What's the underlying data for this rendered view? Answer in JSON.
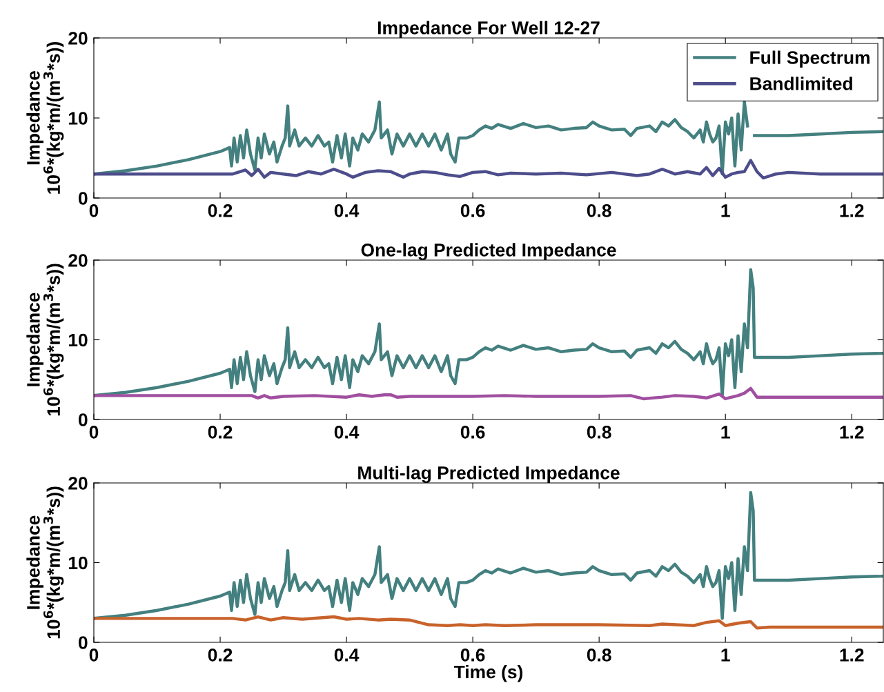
{
  "chart_data": [
    {
      "type": "line",
      "title": "Impedance For Well 12-27",
      "ylabel": "Impedance\n10$^{6}$*(kg*m/(m$^{3}$*s))",
      "xlim": [
        0,
        1.25
      ],
      "ylim": [
        0,
        20
      ],
      "xticks": [
        0,
        0.2,
        0.4,
        0.6,
        0.8,
        1,
        1.2
      ],
      "yticks": [
        0,
        10,
        20
      ],
      "grid": false,
      "legend": "top right",
      "line_style": "solid",
      "marker": "none",
      "series": [
        {
          "name": "Full Spectrum",
          "color": "#43807f",
          "x": [
            0,
            0.05,
            0.1,
            0.15,
            0.2,
            0.215,
            0.218,
            0.222,
            0.227,
            0.232,
            0.237,
            0.242,
            0.248,
            0.255,
            0.26,
            0.265,
            0.27,
            0.278,
            0.285,
            0.29,
            0.298,
            0.303,
            0.307,
            0.31,
            0.318,
            0.325,
            0.335,
            0.345,
            0.355,
            0.365,
            0.372,
            0.378,
            0.385,
            0.392,
            0.398,
            0.405,
            0.41,
            0.418,
            0.425,
            0.435,
            0.445,
            0.452,
            0.455,
            0.465,
            0.472,
            0.48,
            0.49,
            0.5,
            0.51,
            0.52,
            0.53,
            0.54,
            0.55,
            0.56,
            0.565,
            0.572,
            0.578,
            0.59,
            0.6,
            0.61,
            0.62,
            0.63,
            0.64,
            0.66,
            0.68,
            0.7,
            0.72,
            0.74,
            0.76,
            0.78,
            0.79,
            0.8,
            0.82,
            0.84,
            0.85,
            0.86,
            0.88,
            0.89,
            0.9,
            0.91,
            0.92,
            0.93,
            0.94,
            0.95,
            0.96,
            0.965,
            0.97,
            0.975,
            0.98,
            0.985,
            0.99,
            0.995,
            1.0,
            1.005,
            1.01,
            1.015,
            1.02,
            1.025,
            1.03,
            1.035,
            1.04,
            1.044,
            1.046,
            1.1,
            1.15,
            1.2,
            1.25
          ],
          "values": [
            3.0,
            3.4,
            4.0,
            4.8,
            5.8,
            6.3,
            4.0,
            7.5,
            4.5,
            7.8,
            5.0,
            8.5,
            5.5,
            3.5,
            7.5,
            5.0,
            8.0,
            5.5,
            7.0,
            4.5,
            6.5,
            7.5,
            11.5,
            6.5,
            8.5,
            6.5,
            7.5,
            6.5,
            7.8,
            6.5,
            7.0,
            4.5,
            7.8,
            5.0,
            8.0,
            4.0,
            7.5,
            6.0,
            8.0,
            7.0,
            8.5,
            12.0,
            7.5,
            8.5,
            5.5,
            8.0,
            6.5,
            8.0,
            6.5,
            8.0,
            6.5,
            8.0,
            6.0,
            8.0,
            5.5,
            4.5,
            7.5,
            7.5,
            7.8,
            8.5,
            9.0,
            8.7,
            9.2,
            8.7,
            9.3,
            8.8,
            9.0,
            8.5,
            8.7,
            8.8,
            9.5,
            9.0,
            8.5,
            8.6,
            7.8,
            8.7,
            9.0,
            8.3,
            9.5,
            9.0,
            9.8,
            8.8,
            8.3,
            7.5,
            8.5,
            7.0,
            9.5,
            8.0,
            7.0,
            7.5,
            9.0,
            3.0,
            9.5,
            8.0,
            10.0,
            4.0,
            10.5,
            6.0,
            12.0,
            9.0,
            null,
            null,
            7.8,
            7.8,
            8.0,
            8.2,
            8.3
          ]
        },
        {
          "name": "Bandlimited",
          "color": "#4d4d8c",
          "x": [
            0,
            0.2,
            0.22,
            0.24,
            0.25,
            0.26,
            0.27,
            0.28,
            0.3,
            0.32,
            0.34,
            0.36,
            0.38,
            0.4,
            0.41,
            0.43,
            0.45,
            0.47,
            0.49,
            0.5,
            0.52,
            0.54,
            0.56,
            0.58,
            0.6,
            0.62,
            0.64,
            0.66,
            0.7,
            0.74,
            0.78,
            0.82,
            0.86,
            0.88,
            0.9,
            0.92,
            0.94,
            0.96,
            0.97,
            0.98,
            0.99,
            1.0,
            1.01,
            1.02,
            1.03,
            1.04,
            1.05,
            1.06,
            1.08,
            1.1,
            1.15,
            1.2,
            1.25
          ],
          "values": [
            3.0,
            3.0,
            3.0,
            3.5,
            2.8,
            3.6,
            2.6,
            3.2,
            3.0,
            2.8,
            3.3,
            3.0,
            3.6,
            3.0,
            2.6,
            3.2,
            3.4,
            3.3,
            2.6,
            3.0,
            3.3,
            3.2,
            2.9,
            2.7,
            3.2,
            3.3,
            2.9,
            3.1,
            3.0,
            3.1,
            2.9,
            3.2,
            2.8,
            3.0,
            3.6,
            3.0,
            3.3,
            3.0,
            3.8,
            2.8,
            3.7,
            2.6,
            3.0,
            3.2,
            3.3,
            4.7,
            3.3,
            2.5,
            3.0,
            3.2,
            3.0,
            3.0,
            3.0
          ]
        }
      ]
    },
    {
      "type": "line",
      "title": "One-lag Predicted Impedance",
      "ylabel": "Impedance\n10$^{6}$*(kg*m/(m$^{3}$*s))",
      "xlim": [
        0,
        1.25
      ],
      "ylim": [
        0,
        20
      ],
      "xticks": [
        0,
        0.2,
        0.4,
        0.6,
        0.8,
        1,
        1.2
      ],
      "yticks": [
        0,
        10,
        20
      ],
      "grid": false,
      "line_style": "solid",
      "marker": "none",
      "series": [
        {
          "color": "#43807f",
          "x": [
            0,
            0.05,
            0.1,
            0.15,
            0.2,
            0.215,
            0.218,
            0.222,
            0.227,
            0.232,
            0.237,
            0.242,
            0.248,
            0.255,
            0.26,
            0.265,
            0.27,
            0.278,
            0.285,
            0.29,
            0.298,
            0.303,
            0.307,
            0.31,
            0.318,
            0.325,
            0.335,
            0.345,
            0.355,
            0.365,
            0.372,
            0.378,
            0.385,
            0.392,
            0.398,
            0.405,
            0.41,
            0.418,
            0.425,
            0.435,
            0.445,
            0.452,
            0.455,
            0.465,
            0.472,
            0.48,
            0.49,
            0.5,
            0.51,
            0.52,
            0.53,
            0.54,
            0.55,
            0.56,
            0.565,
            0.572,
            0.578,
            0.59,
            0.6,
            0.61,
            0.62,
            0.63,
            0.64,
            0.66,
            0.68,
            0.7,
            0.72,
            0.74,
            0.76,
            0.78,
            0.79,
            0.8,
            0.82,
            0.84,
            0.85,
            0.86,
            0.88,
            0.89,
            0.9,
            0.91,
            0.92,
            0.93,
            0.94,
            0.95,
            0.96,
            0.965,
            0.97,
            0.975,
            0.98,
            0.985,
            0.99,
            0.995,
            1.0,
            1.005,
            1.01,
            1.015,
            1.02,
            1.025,
            1.03,
            1.035,
            1.04,
            1.044,
            1.046,
            1.1,
            1.15,
            1.2,
            1.25
          ],
          "values": [
            3.0,
            3.4,
            4.0,
            4.8,
            5.8,
            6.3,
            4.0,
            7.5,
            4.5,
            7.8,
            5.0,
            8.5,
            5.5,
            3.5,
            7.5,
            5.0,
            8.0,
            5.5,
            7.0,
            4.5,
            6.5,
            7.5,
            11.5,
            6.5,
            8.5,
            6.5,
            7.5,
            6.5,
            7.8,
            6.5,
            7.0,
            4.5,
            7.8,
            5.0,
            8.0,
            4.0,
            7.5,
            6.0,
            8.0,
            7.0,
            8.5,
            12.0,
            7.5,
            8.5,
            5.5,
            8.0,
            6.5,
            8.0,
            6.5,
            8.0,
            6.5,
            8.0,
            6.0,
            8.0,
            5.5,
            4.5,
            7.5,
            7.5,
            7.8,
            8.5,
            9.0,
            8.7,
            9.2,
            8.7,
            9.3,
            8.8,
            9.0,
            8.5,
            8.7,
            8.8,
            9.5,
            9.0,
            8.5,
            8.6,
            7.8,
            8.7,
            9.0,
            8.3,
            9.5,
            9.0,
            9.8,
            8.8,
            8.3,
            7.5,
            8.5,
            7.0,
            9.5,
            8.0,
            7.0,
            7.5,
            9.0,
            3.0,
            9.5,
            8.0,
            10.0,
            4.0,
            10.5,
            6.0,
            12.0,
            9.0,
            18.8,
            16.5,
            7.8,
            7.8,
            8.0,
            8.2,
            8.3
          ]
        },
        {
          "color": "#a04fa0",
          "x": [
            0,
            0.2,
            0.25,
            0.26,
            0.27,
            0.28,
            0.3,
            0.35,
            0.4,
            0.42,
            0.44,
            0.46,
            0.47,
            0.48,
            0.5,
            0.55,
            0.6,
            0.65,
            0.7,
            0.75,
            0.8,
            0.85,
            0.87,
            0.9,
            0.92,
            0.95,
            0.97,
            0.99,
            1.0,
            1.02,
            1.03,
            1.04,
            1.05,
            1.1,
            1.25
          ],
          "values": [
            3.0,
            3.0,
            3.0,
            2.7,
            3.0,
            2.7,
            2.9,
            3.0,
            2.8,
            3.1,
            2.9,
            3.1,
            3.1,
            2.8,
            2.9,
            2.9,
            2.9,
            3.0,
            2.9,
            2.9,
            2.9,
            3.0,
            2.6,
            2.8,
            3.0,
            2.9,
            2.7,
            3.2,
            2.6,
            3.0,
            3.3,
            3.9,
            2.8,
            2.8,
            2.8
          ]
        }
      ]
    },
    {
      "type": "line",
      "title": "Multi-lag Predicted Impedance",
      "xlabel": "Time (s)",
      "ylabel": "Impedance\n10$^{6}$*(kg*m/(m$^{3}$*s))",
      "xlim": [
        0,
        1.25
      ],
      "ylim": [
        0,
        20
      ],
      "xticks": [
        0,
        0.2,
        0.4,
        0.6,
        0.8,
        1,
        1.2
      ],
      "yticks": [
        0,
        10,
        20
      ],
      "grid": false,
      "line_style": "solid",
      "marker": "none",
      "series": [
        {
          "color": "#43807f",
          "x": [
            0,
            0.05,
            0.1,
            0.15,
            0.2,
            0.215,
            0.218,
            0.222,
            0.227,
            0.232,
            0.237,
            0.242,
            0.248,
            0.255,
            0.26,
            0.265,
            0.27,
            0.278,
            0.285,
            0.29,
            0.298,
            0.303,
            0.307,
            0.31,
            0.318,
            0.325,
            0.335,
            0.345,
            0.355,
            0.365,
            0.372,
            0.378,
            0.385,
            0.392,
            0.398,
            0.405,
            0.41,
            0.418,
            0.425,
            0.435,
            0.445,
            0.452,
            0.455,
            0.465,
            0.472,
            0.48,
            0.49,
            0.5,
            0.51,
            0.52,
            0.53,
            0.54,
            0.55,
            0.56,
            0.565,
            0.572,
            0.578,
            0.59,
            0.6,
            0.61,
            0.62,
            0.63,
            0.64,
            0.66,
            0.68,
            0.7,
            0.72,
            0.74,
            0.76,
            0.78,
            0.79,
            0.8,
            0.82,
            0.84,
            0.85,
            0.86,
            0.88,
            0.89,
            0.9,
            0.91,
            0.92,
            0.93,
            0.94,
            0.95,
            0.96,
            0.965,
            0.97,
            0.975,
            0.98,
            0.985,
            0.99,
            0.995,
            1.0,
            1.005,
            1.01,
            1.015,
            1.02,
            1.025,
            1.03,
            1.035,
            1.04,
            1.044,
            1.046,
            1.1,
            1.15,
            1.2,
            1.25
          ],
          "values": [
            3.0,
            3.4,
            4.0,
            4.8,
            5.8,
            6.3,
            4.0,
            7.5,
            4.5,
            7.8,
            5.0,
            8.5,
            5.5,
            3.5,
            7.5,
            5.0,
            8.0,
            5.5,
            7.0,
            4.5,
            6.5,
            7.5,
            11.5,
            6.5,
            8.5,
            6.5,
            7.5,
            6.5,
            7.8,
            6.5,
            7.0,
            4.5,
            7.8,
            5.0,
            8.0,
            4.0,
            7.5,
            6.0,
            8.0,
            7.0,
            8.5,
            12.0,
            7.5,
            8.5,
            5.5,
            8.0,
            6.5,
            8.0,
            6.5,
            8.0,
            6.5,
            8.0,
            6.0,
            8.0,
            5.5,
            4.5,
            7.5,
            7.5,
            7.8,
            8.5,
            9.0,
            8.7,
            9.2,
            8.7,
            9.3,
            8.8,
            9.0,
            8.5,
            8.7,
            8.8,
            9.5,
            9.0,
            8.5,
            8.6,
            7.8,
            8.7,
            9.0,
            8.3,
            9.5,
            9.0,
            9.8,
            8.8,
            8.3,
            7.5,
            8.5,
            7.0,
            9.5,
            8.0,
            7.0,
            7.5,
            9.0,
            3.0,
            9.5,
            8.0,
            10.0,
            4.0,
            10.5,
            6.0,
            12.0,
            9.0,
            18.8,
            16.5,
            7.8,
            7.8,
            8.0,
            8.2,
            8.3
          ]
        },
        {
          "color": "#c8622a",
          "x": [
            0,
            0.2,
            0.22,
            0.24,
            0.26,
            0.28,
            0.3,
            0.33,
            0.38,
            0.4,
            0.42,
            0.45,
            0.47,
            0.5,
            0.53,
            0.56,
            0.58,
            0.6,
            0.62,
            0.65,
            0.7,
            0.8,
            0.88,
            0.9,
            0.95,
            0.97,
            0.99,
            1.0,
            1.02,
            1.04,
            1.05,
            1.07,
            1.1,
            1.25
          ],
          "values": [
            3.0,
            3.0,
            3.0,
            2.8,
            3.2,
            2.8,
            3.1,
            2.9,
            3.2,
            2.9,
            3.0,
            2.8,
            2.9,
            2.8,
            2.2,
            2.1,
            2.2,
            2.1,
            2.2,
            2.1,
            2.2,
            2.2,
            2.1,
            2.3,
            2.1,
            2.5,
            2.7,
            2.1,
            2.4,
            2.6,
            1.8,
            1.9,
            1.9,
            1.9
          ]
        }
      ]
    }
  ]
}
